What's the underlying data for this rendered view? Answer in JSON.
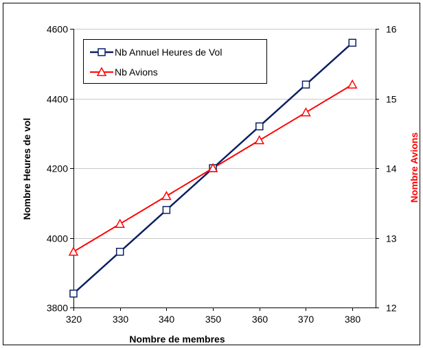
{
  "chart_data": {
    "type": "line",
    "xlabel": "Nombre de membres",
    "ylabel_left": "Nombre Heures de vol",
    "ylabel_right": "Nombre Avions",
    "x": [
      320,
      330,
      340,
      350,
      360,
      370,
      380
    ],
    "xlim": [
      320,
      385
    ],
    "x_ticks": [
      320,
      330,
      340,
      350,
      360,
      370,
      380
    ],
    "ylim_left": [
      3800,
      4600
    ],
    "y_ticks_left": [
      3800,
      4000,
      4200,
      4400,
      4600
    ],
    "ylim_right": [
      12,
      16
    ],
    "y_ticks_right": [
      12,
      13,
      14,
      15,
      16
    ],
    "grid": "horizontal",
    "legend_position": "top-left",
    "colors": {
      "right_axis_label": "#ff0000"
    },
    "series": [
      {
        "name": "Nb Annuel Heures de Vol",
        "axis": "left",
        "marker": "square",
        "color": "#0a1f63",
        "values": [
          3840,
          3960,
          4080,
          4200,
          4320,
          4440,
          4560
        ]
      },
      {
        "name": "Nb Avions",
        "axis": "right",
        "marker": "triangle",
        "color": "#ff0000",
        "values": [
          12.8,
          13.2,
          13.6,
          14.0,
          14.4,
          14.8,
          15.2
        ]
      }
    ]
  }
}
